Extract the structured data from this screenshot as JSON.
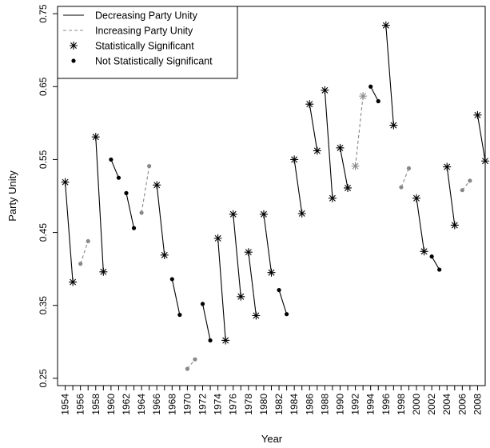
{
  "chart_data": {
    "type": "line",
    "title": "",
    "xlabel": "Year",
    "ylabel": "Party Unity",
    "xlim": [
      1953,
      2009
    ],
    "ylim": [
      0.24,
      0.76
    ],
    "yticks": [
      "0.25",
      "0.35",
      "0.45",
      "0.55",
      "0.65",
      "0.75"
    ],
    "xticks": [
      "1954",
      "1956",
      "1958",
      "1960",
      "1962",
      "1964",
      "1966",
      "1968",
      "1970",
      "1972",
      "1974",
      "1976",
      "1978",
      "1980",
      "1982",
      "1984",
      "1986",
      "1988",
      "1990",
      "1992",
      "1994",
      "1996",
      "1998",
      "2000",
      "2002",
      "2004",
      "2006",
      "2008"
    ],
    "grid": false,
    "legend": {
      "position": "top-left",
      "entries": [
        {
          "label": "Decreasing Party Unity",
          "kind": "solid-line"
        },
        {
          "label": "Increasing Party Unity",
          "kind": "dashed-line"
        },
        {
          "label": "Statistically Significant",
          "kind": "asterisk"
        },
        {
          "label": "Not Statistically Significant",
          "kind": "dot"
        }
      ]
    },
    "colors": {
      "decreasing": "#000000",
      "increasing": "#888888"
    },
    "segments": [
      {
        "x": [
          1954,
          1955
        ],
        "y": [
          0.519,
          0.382
        ],
        "direction": "decreasing",
        "significant": true
      },
      {
        "x": [
          1956,
          1957
        ],
        "y": [
          0.407,
          0.438
        ],
        "direction": "increasing",
        "significant": false
      },
      {
        "x": [
          1958,
          1959
        ],
        "y": [
          0.581,
          0.396
        ],
        "direction": "decreasing",
        "significant": true
      },
      {
        "x": [
          1960,
          1961
        ],
        "y": [
          0.55,
          0.525
        ],
        "direction": "decreasing",
        "significant": false
      },
      {
        "x": [
          1962,
          1963
        ],
        "y": [
          0.504,
          0.456
        ],
        "direction": "decreasing",
        "significant": false
      },
      {
        "x": [
          1964,
          1965
        ],
        "y": [
          0.477,
          0.541
        ],
        "direction": "increasing",
        "significant": false
      },
      {
        "x": [
          1966,
          1967
        ],
        "y": [
          0.515,
          0.419
        ],
        "direction": "decreasing",
        "significant": true
      },
      {
        "x": [
          1968,
          1969
        ],
        "y": [
          0.386,
          0.337
        ],
        "direction": "decreasing",
        "significant": false
      },
      {
        "x": [
          1970,
          1971
        ],
        "y": [
          0.263,
          0.276
        ],
        "direction": "increasing",
        "significant": false
      },
      {
        "x": [
          1972,
          1973
        ],
        "y": [
          0.352,
          0.302
        ],
        "direction": "decreasing",
        "significant": false
      },
      {
        "x": [
          1974,
          1975
        ],
        "y": [
          0.442,
          0.302
        ],
        "direction": "decreasing",
        "significant": true
      },
      {
        "x": [
          1976,
          1977
        ],
        "y": [
          0.475,
          0.362
        ],
        "direction": "decreasing",
        "significant": true
      },
      {
        "x": [
          1978,
          1979
        ],
        "y": [
          0.423,
          0.336
        ],
        "direction": "decreasing",
        "significant": true
      },
      {
        "x": [
          1980,
          1981
        ],
        "y": [
          0.475,
          0.395
        ],
        "direction": "decreasing",
        "significant": true
      },
      {
        "x": [
          1982,
          1983
        ],
        "y": [
          0.371,
          0.338
        ],
        "direction": "decreasing",
        "significant": false
      },
      {
        "x": [
          1984,
          1985
        ],
        "y": [
          0.55,
          0.476
        ],
        "direction": "decreasing",
        "significant": true
      },
      {
        "x": [
          1986,
          1987
        ],
        "y": [
          0.626,
          0.562
        ],
        "direction": "decreasing",
        "significant": true
      },
      {
        "x": [
          1988,
          1989
        ],
        "y": [
          0.645,
          0.497
        ],
        "direction": "decreasing",
        "significant": true
      },
      {
        "x": [
          1990,
          1991
        ],
        "y": [
          0.566,
          0.511
        ],
        "direction": "decreasing",
        "significant": true
      },
      {
        "x": [
          1992,
          1993
        ],
        "y": [
          0.541,
          0.637
        ],
        "direction": "increasing",
        "significant": true
      },
      {
        "x": [
          1994,
          1995
        ],
        "y": [
          0.65,
          0.63
        ],
        "direction": "decreasing",
        "significant": false
      },
      {
        "x": [
          1996,
          1997
        ],
        "y": [
          0.734,
          0.597
        ],
        "direction": "decreasing",
        "significant": true
      },
      {
        "x": [
          1998,
          1999
        ],
        "y": [
          0.512,
          0.538
        ],
        "direction": "increasing",
        "significant": false
      },
      {
        "x": [
          2000,
          2001
        ],
        "y": [
          0.497,
          0.424
        ],
        "direction": "decreasing",
        "significant": true
      },
      {
        "x": [
          2002,
          2003
        ],
        "y": [
          0.417,
          0.399
        ],
        "direction": "decreasing",
        "significant": false
      },
      {
        "x": [
          2004,
          2005
        ],
        "y": [
          0.54,
          0.46
        ],
        "direction": "decreasing",
        "significant": true
      },
      {
        "x": [
          2006,
          2007
        ],
        "y": [
          0.508,
          0.521
        ],
        "direction": "increasing",
        "significant": false
      },
      {
        "x": [
          2008,
          2009
        ],
        "y": [
          0.611,
          0.548
        ],
        "direction": "decreasing",
        "significant": true
      }
    ]
  }
}
